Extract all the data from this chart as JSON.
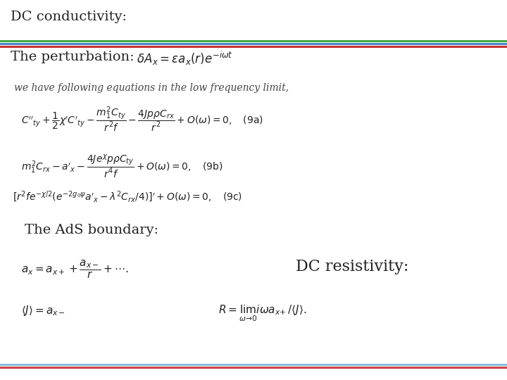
{
  "title": "DC conductivity:",
  "title_fontsize": 14,
  "background_color": "#ffffff",
  "perturbation_label": "The perturbation:",
  "perturbation_label_fontsize": 14,
  "perturbation_eq": "$\\; \\delta A_x = \\epsilon a_x(r)e^{-i\\omega t}$",
  "perturbation_eq_fontsize": 12,
  "body_text": "we have following equations in the low frequency limit,",
  "body_text_fontsize": 10,
  "eq9a": "$C''_{ty} + \\dfrac{1}{2}\\chi' C'_{ty} - \\dfrac{m_1^2 C_{ty}}{r^2 f} - \\dfrac{4Jp\\rho C_{rx}}{r^2} + O(\\omega) = 0, \\quad \\mathrm{(9a)}$",
  "eq9b": "$m_1^2 C_{rx} - a'_x - \\dfrac{4Je^{\\chi}p\\rho C_{ty}}{r^4 f} + O(\\omega) = 0, \\quad \\mathrm{(9b)}$",
  "eq9c": "$[r^2 f e^{-\\chi/2}(e^{-2g_0\\psi}a'_x - \\lambda^2 C_{rx}/4)]' + O(\\omega) = 0, \\quad \\mathrm{(9c)}$",
  "eq_fontsize": 10,
  "ads_label": "The AdS boundary:",
  "ads_label_fontsize": 14,
  "ads_eq1": "$a_x = a_{x+} + \\dfrac{a_{x-}}{r} + \\cdots .$",
  "ads_eq2": "$\\langle J \\rangle = a_{x-}$",
  "ads_eq_fontsize": 11,
  "dc_resistivity_label": "DC resistivity:",
  "dc_resistivity_label_fontsize": 16,
  "dc_eq": "$R = \\lim_{\\omega \\to 0} i\\omega a_{x+}/\\langle J \\rangle.$",
  "dc_eq_fontsize": 11,
  "top_line1_color": "#44aa44",
  "top_line2_color": "#4488cc",
  "top_line3_color": "#cc3333",
  "bot_line1_color": "#88bbdd",
  "bot_line2_color": "#cc4444"
}
